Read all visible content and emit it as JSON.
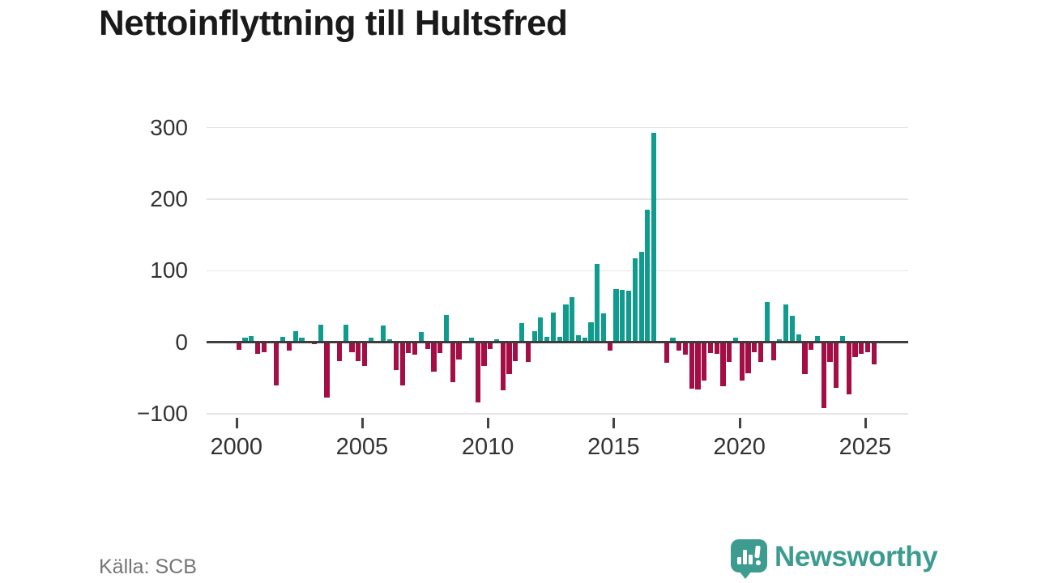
{
  "title": "Nettoinflyttning till Hultsfred",
  "source": "Källa: SCB",
  "brand": {
    "name": "Newsworthy"
  },
  "colors": {
    "positive": "#0f9b8e",
    "negative": "#a50d45",
    "axis": "#3c3c3c",
    "grid": "#e4e4e4",
    "brand_teal": "#3d9c8f",
    "title_text": "#1a1a1a",
    "tick_text": "#333333",
    "source_text": "#757575"
  },
  "chart_data": {
    "type": "bar",
    "title": "Nettoinflyttning till Hultsfred",
    "xlabel": "",
    "ylabel": "",
    "unit": "net migration per quarter (persons)",
    "grid": true,
    "ylim": [
      -115,
      315
    ],
    "y_ticks": [
      300,
      200,
      100,
      0,
      -100
    ],
    "x_tick_years": [
      2000,
      2005,
      2010,
      2015,
      2020,
      2025
    ],
    "x": [
      "2000-Q1",
      "2000-Q2",
      "2000-Q3",
      "2000-Q4",
      "2001-Q1",
      "2001-Q2",
      "2001-Q3",
      "2001-Q4",
      "2002-Q1",
      "2002-Q2",
      "2002-Q3",
      "2002-Q4",
      "2003-Q1",
      "2003-Q2",
      "2003-Q3",
      "2003-Q4",
      "2004-Q1",
      "2004-Q2",
      "2004-Q3",
      "2004-Q4",
      "2005-Q1",
      "2005-Q2",
      "2005-Q3",
      "2005-Q4",
      "2006-Q1",
      "2006-Q2",
      "2006-Q3",
      "2006-Q4",
      "2007-Q1",
      "2007-Q2",
      "2007-Q3",
      "2007-Q4",
      "2008-Q1",
      "2008-Q2",
      "2008-Q3",
      "2008-Q4",
      "2009-Q1",
      "2009-Q2",
      "2009-Q3",
      "2009-Q4",
      "2010-Q1",
      "2010-Q2",
      "2010-Q3",
      "2010-Q4",
      "2011-Q1",
      "2011-Q2",
      "2011-Q3",
      "2011-Q4",
      "2012-Q1",
      "2012-Q2",
      "2012-Q3",
      "2012-Q4",
      "2013-Q1",
      "2013-Q2",
      "2013-Q3",
      "2013-Q4",
      "2014-Q1",
      "2014-Q2",
      "2014-Q3",
      "2014-Q4",
      "2015-Q1",
      "2015-Q2",
      "2015-Q3",
      "2015-Q4",
      "2016-Q1",
      "2016-Q2",
      "2016-Q3",
      "2016-Q4",
      "2017-Q1",
      "2017-Q2",
      "2017-Q3",
      "2017-Q4",
      "2018-Q1",
      "2018-Q2",
      "2018-Q3",
      "2018-Q4",
      "2019-Q1",
      "2019-Q2",
      "2019-Q3",
      "2019-Q4",
      "2020-Q1",
      "2020-Q2",
      "2020-Q3",
      "2020-Q4",
      "2021-Q1",
      "2021-Q2",
      "2021-Q3",
      "2021-Q4",
      "2022-Q1",
      "2022-Q2",
      "2022-Q3",
      "2022-Q4",
      "2023-Q1",
      "2023-Q2",
      "2023-Q3",
      "2023-Q4",
      "2024-Q1",
      "2024-Q2",
      "2024-Q3",
      "2024-Q4",
      "2025-Q1",
      "2025-Q2"
    ],
    "values": [
      -11,
      6,
      9,
      -16,
      -14,
      0,
      -60,
      8,
      -12,
      15,
      7,
      1,
      -3,
      25,
      -77,
      0,
      -26,
      25,
      -14,
      -26,
      -33,
      7,
      -2,
      23,
      4,
      -39,
      -60,
      -15,
      -17,
      14,
      -9,
      -41,
      -15,
      38,
      -56,
      -24,
      0,
      6,
      -84,
      -33,
      -9,
      4,
      -67,
      -45,
      -26,
      27,
      -28,
      15,
      35,
      8,
      42,
      8,
      53,
      63,
      10,
      6,
      28,
      110,
      40,
      -12,
      74,
      73,
      72,
      117,
      126,
      185,
      293,
      0,
      -29,
      7,
      -12,
      -17,
      -65,
      -66,
      -54,
      -15,
      -16,
      -62,
      -28,
      6,
      -53,
      -43,
      -14,
      -28,
      56,
      -25,
      4,
      53,
      37,
      11,
      -44,
      -11,
      9,
      -92,
      -28,
      -64,
      9,
      -73,
      -21,
      -16,
      -14,
      -31
    ],
    "positive_color": "#0f9b8e",
    "negative_color": "#a50d45",
    "legend": []
  }
}
